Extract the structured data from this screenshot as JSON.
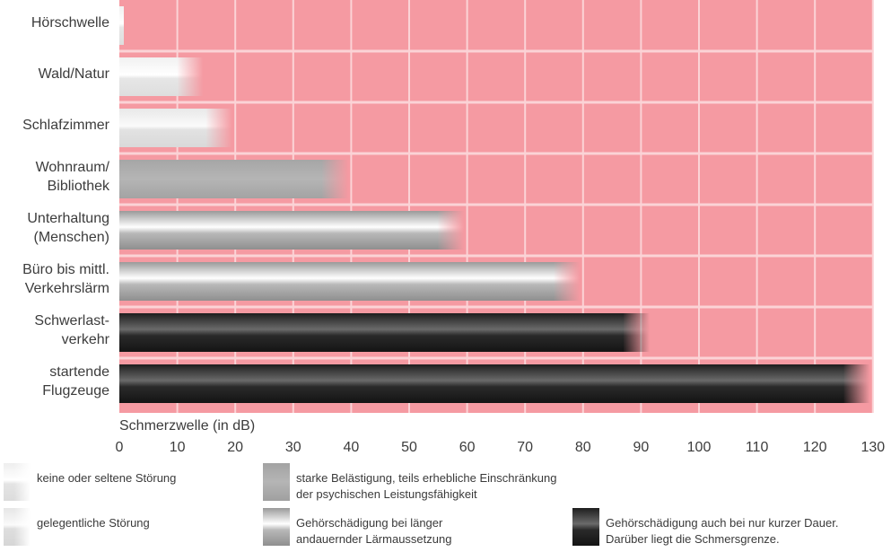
{
  "chart_data": {
    "type": "bar",
    "orientation": "horizontal",
    "categories": [
      "Hörschwelle",
      "Wald/Natur",
      "Schlafzimmer",
      "Wohnraum/\nBibliothek",
      "Unterhaltung\n(Menschen)",
      "Büro bis mittl.\nVerkehrslärm",
      "Schwerlast-\nverkehr",
      "startende\nFlugzeuge"
    ],
    "values": [
      0,
      10,
      15,
      35,
      55,
      75,
      87,
      125
    ],
    "category_levels": [
      "keine oder seltene Störung",
      "keine oder seltene Störung",
      "gelegentliche Störung",
      "starke Belästigung, teils erhebliche Einschränkung der psychischen Leistungsfähigkeit",
      "Gehörschädigung bei länger andauernder Lärmaussetzung",
      "Gehörschädigung bei länger andauernder Lärmaussetzung",
      "Gehörschädigung auch bei nur kurzer Dauer. Darüber liegt die Schmersgrenze.",
      "Gehörschädigung auch bei nur kurzer Dauer. Darüber liegt die Schmersgrenze."
    ],
    "xlabel": "Schmerzwelle (in dB)",
    "xlim": [
      0,
      130
    ],
    "xticks": [
      "0",
      "10",
      "20",
      "30",
      "40",
      "50",
      "60",
      "70",
      "80",
      "90",
      "100",
      "110",
      "120",
      "130"
    ],
    "grid": true,
    "legend": {
      "placement": "bottom",
      "items": [
        {
          "text": "keine oder seltene Störung",
          "style": "light"
        },
        {
          "text": "gelegentliche Störung",
          "style": "light-fade"
        },
        {
          "text": "starke Belästigung, teils erhebliche Einschränkung\nder psychischen Leistungsfähigkeit",
          "style": "mid"
        },
        {
          "text": "Gehörschädigung bei länger\nandauernder Lärmaussetzung",
          "style": "white-gray"
        },
        {
          "text": "Gehörschädigung auch bei nur kurzer Dauer.\nDarüber liegt die Schmersgrenze.",
          "style": "dark"
        }
      ]
    },
    "colors": {
      "background": "#f59aa2",
      "grid": "#fbd3d6"
    }
  }
}
